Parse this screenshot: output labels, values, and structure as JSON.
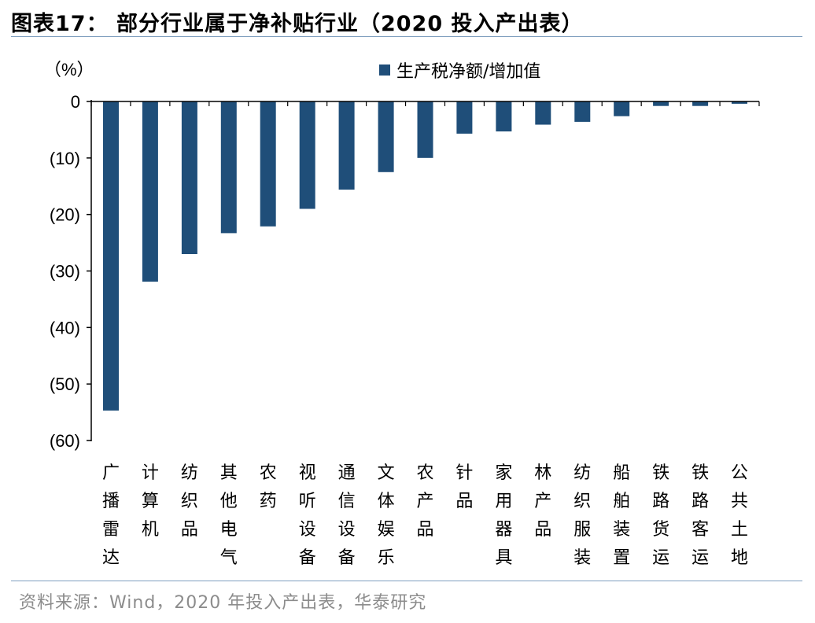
{
  "title": "图表17： 部分行业属于净补贴行业（2020 投入产出表）",
  "source": "资料来源：Wind，2020 年投入产出表，华泰研究",
  "chart_data": {
    "type": "bar",
    "unit_label": "（%）",
    "categories": [
      "广播雷达",
      "计算机",
      "纺织品",
      "其他电气",
      "农药",
      "视听设备",
      "通信设备",
      "文体娱乐",
      "农产品",
      "针品",
      "家用器具",
      "林产品",
      "纺织服装",
      "船舶装置",
      "铁路货运",
      "铁路客运",
      "公共土地"
    ],
    "series": [
      {
        "name": "生产税净额/增加值",
        "color": "#1f4e79",
        "values": [
          -54.7,
          -31.9,
          -27.0,
          -23.3,
          -22.1,
          -19.0,
          -15.6,
          -12.5,
          -10.0,
          -5.7,
          -5.3,
          -4.1,
          -3.6,
          -2.6,
          -0.8,
          -0.8,
          -0.4
        ]
      }
    ],
    "ylim": [
      -60,
      0
    ],
    "yticks": [
      0,
      -10,
      -20,
      -30,
      -40,
      -50,
      -60
    ],
    "ytick_labels": [
      "0",
      "(10)",
      "(20)",
      "(30)",
      "(40)",
      "(50)",
      "(60)"
    ],
    "legend_position": "top-right",
    "grid": false
  }
}
